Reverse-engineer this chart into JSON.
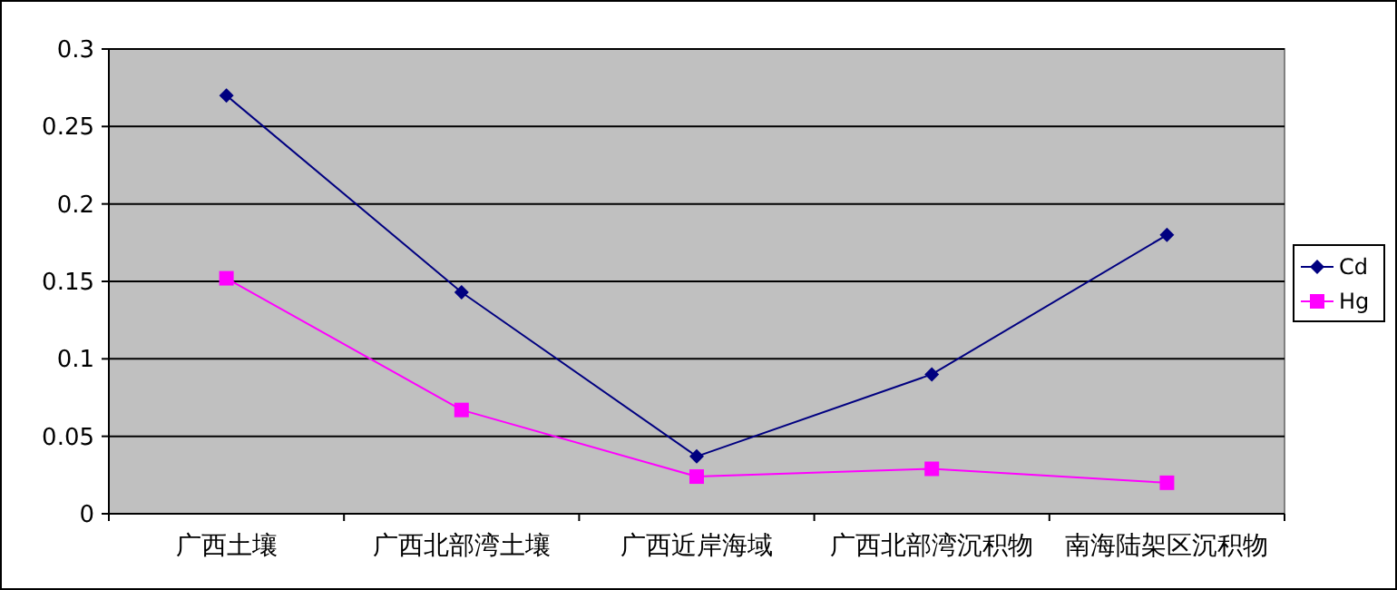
{
  "chart_data": {
    "type": "line",
    "categories": [
      "广西土壤",
      "广西北部湾土壤",
      "广西近岸海域",
      "广西北部湾沉积物",
      "南海陆架区沉积物"
    ],
    "series": [
      {
        "name": "Cd",
        "color": "#000080",
        "marker": "diamond",
        "values": [
          0.27,
          0.143,
          0.037,
          0.09,
          0.18
        ]
      },
      {
        "name": "Hg",
        "color": "#ff00ff",
        "marker": "square",
        "values": [
          0.152,
          0.067,
          0.024,
          0.029,
          0.02
        ]
      }
    ],
    "ylim": [
      0,
      0.3
    ],
    "yticks": [
      0,
      {
        "value": 0.05,
        "label": "0.05"
      },
      {
        "value": 0.1,
        "label": "0.1"
      },
      {
        "value": 0.15,
        "label": "0.15"
      },
      {
        "value": 0.2,
        "label": "0.2"
      },
      {
        "value": 0.25,
        "label": "0.25"
      },
      {
        "value": 0.3,
        "label": "0.3"
      }
    ],
    "grid": "y",
    "legend": "right"
  }
}
